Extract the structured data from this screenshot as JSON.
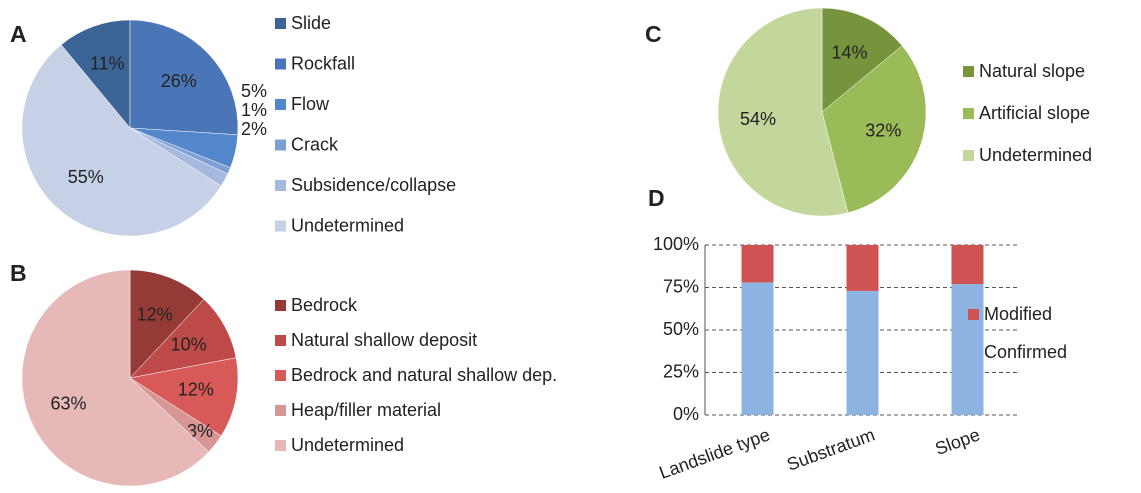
{
  "chart_data": [
    {
      "type": "pie",
      "title": "A",
      "categories": [
        "Slide",
        "Rockfall",
        "Flow",
        "Crack",
        "Subsidence/collapse",
        "Undetermined"
      ],
      "values": [
        11,
        26,
        5,
        1,
        2,
        55
      ],
      "value_labels": [
        "11%",
        "26%",
        "5%",
        "1%",
        "2%",
        "55%"
      ],
      "colors": [
        "#3c6496",
        "#4a76b8",
        "#5287cc",
        "#7c9fd6",
        "#a5b8de",
        "#c6d0e6"
      ]
    },
    {
      "type": "pie",
      "title": "B",
      "categories": [
        "Bedrock",
        "Natural shallow deposit",
        "Bedrock and natural shallow dep.",
        "Heap/filler material",
        "Undetermined"
      ],
      "values": [
        12,
        10,
        12,
        3,
        63
      ],
      "value_labels": [
        "12%",
        "10%",
        "12%",
        "3%",
        "63%"
      ],
      "colors": [
        "#963a38",
        "#bd4a48",
        "#d85a58",
        "#d79593",
        "#e6b9b8"
      ]
    },
    {
      "type": "pie",
      "title": "C",
      "categories": [
        "Natural slope",
        "Artificial slope",
        "Undetermined"
      ],
      "values": [
        14,
        32,
        54
      ],
      "value_labels": [
        "14%",
        "32%",
        "54%"
      ],
      "colors": [
        "#77933c",
        "#9bbb59",
        "#c3d69b"
      ]
    },
    {
      "type": "stacked_bar",
      "title": "D",
      "categories": [
        "Landslide type",
        "Substratum",
        "Slope"
      ],
      "series": [
        {
          "name": "Confirmed",
          "color": "#8db3e2",
          "values": [
            78,
            73,
            77
          ]
        },
        {
          "name": "Modified",
          "color": "#cf5352",
          "values": [
            22,
            27,
            23
          ]
        }
      ],
      "ylim": [
        0,
        100
      ],
      "yticks": [
        {
          "value": 0,
          "label": "0%"
        },
        {
          "value": 25,
          "label": "25%"
        },
        {
          "value": 50,
          "label": "50%"
        },
        {
          "value": 75,
          "label": "75%"
        },
        {
          "value": 100,
          "label": "100%"
        }
      ],
      "grid": true
    }
  ]
}
